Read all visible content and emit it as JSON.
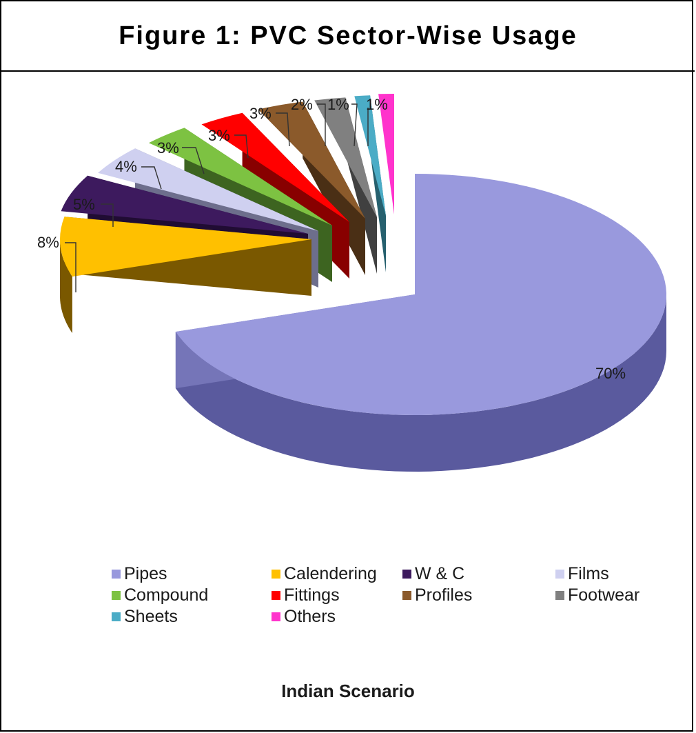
{
  "title": "Figure 1: PVC Sector-Wise Usage",
  "chart_data": {
    "type": "pie",
    "title": "",
    "subtitle": "Indian Scenario",
    "legend_position": "bottom",
    "slices": [
      {
        "name": "Pipes",
        "value": 70,
        "label": "70%",
        "color": "#9999dd",
        "side_color": "#5a5a9e"
      },
      {
        "name": "Calendering",
        "value": 8,
        "label": "8%",
        "color": "#ffc000",
        "side_color": "#7a5800"
      },
      {
        "name": "W & C",
        "value": 5,
        "label": "5%",
        "color": "#3d1a5e",
        "side_color": "#200c33"
      },
      {
        "name": "Films",
        "value": 4,
        "label": "4%",
        "color": "#cfd0f0",
        "side_color": "#6d6e8c"
      },
      {
        "name": "Compound",
        "value": 3,
        "label": "3%",
        "color": "#7dc242",
        "side_color": "#3d6420"
      },
      {
        "name": "Fittings",
        "value": 3,
        "label": "3%",
        "color": "#ff0000",
        "side_color": "#880000"
      },
      {
        "name": "Profiles",
        "value": 3,
        "label": "3%",
        "color": "#8b5a2b",
        "side_color": "#4a2f15"
      },
      {
        "name": "Footwear",
        "value": 2,
        "label": "2%",
        "color": "#808080",
        "side_color": "#404040"
      },
      {
        "name": "Sheets",
        "value": 1,
        "label": "1%",
        "color": "#4bacc6",
        "side_color": "#26606e"
      },
      {
        "name": "Others",
        "value": 1,
        "label": "1%",
        "color": "#ff33cc",
        "side_color": "#8c1a70"
      }
    ]
  }
}
